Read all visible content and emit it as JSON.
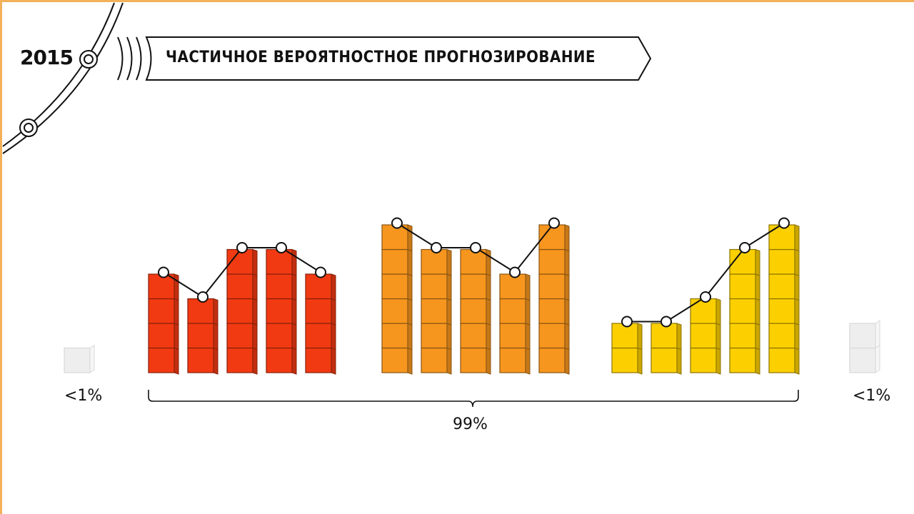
{
  "header": {
    "year": "2015",
    "title": "ЧАСТИЧНОЕ ВЕРОЯТНОСТНОЕ ПРОГНОЗИРОВАНИЕ"
  },
  "labels": {
    "left_pct": "<1%",
    "center_pct": "99%",
    "right_pct": "<1%"
  },
  "colors": {
    "frame": "#f2b15a",
    "red": "#f23a12",
    "orange": "#f7961e",
    "yellow": "#fcd000",
    "ghost": "#eeeeee"
  },
  "groups": [
    {
      "name": "red",
      "color": "#f23a12",
      "heights": [
        4,
        3,
        5,
        5,
        4
      ],
      "points": [
        5,
        4,
        6,
        6,
        5
      ]
    },
    {
      "name": "orange",
      "color": "#f7961e",
      "heights": [
        6,
        5,
        5,
        4,
        6
      ],
      "points": [
        7,
        6,
        6,
        5,
        7
      ]
    },
    {
      "name": "yellow",
      "color": "#fcd000",
      "heights": [
        2,
        2,
        3,
        5,
        6
      ],
      "points": [
        3,
        3,
        4,
        6,
        7
      ]
    }
  ],
  "outliers": {
    "left_height": 1,
    "right_height": 2
  }
}
